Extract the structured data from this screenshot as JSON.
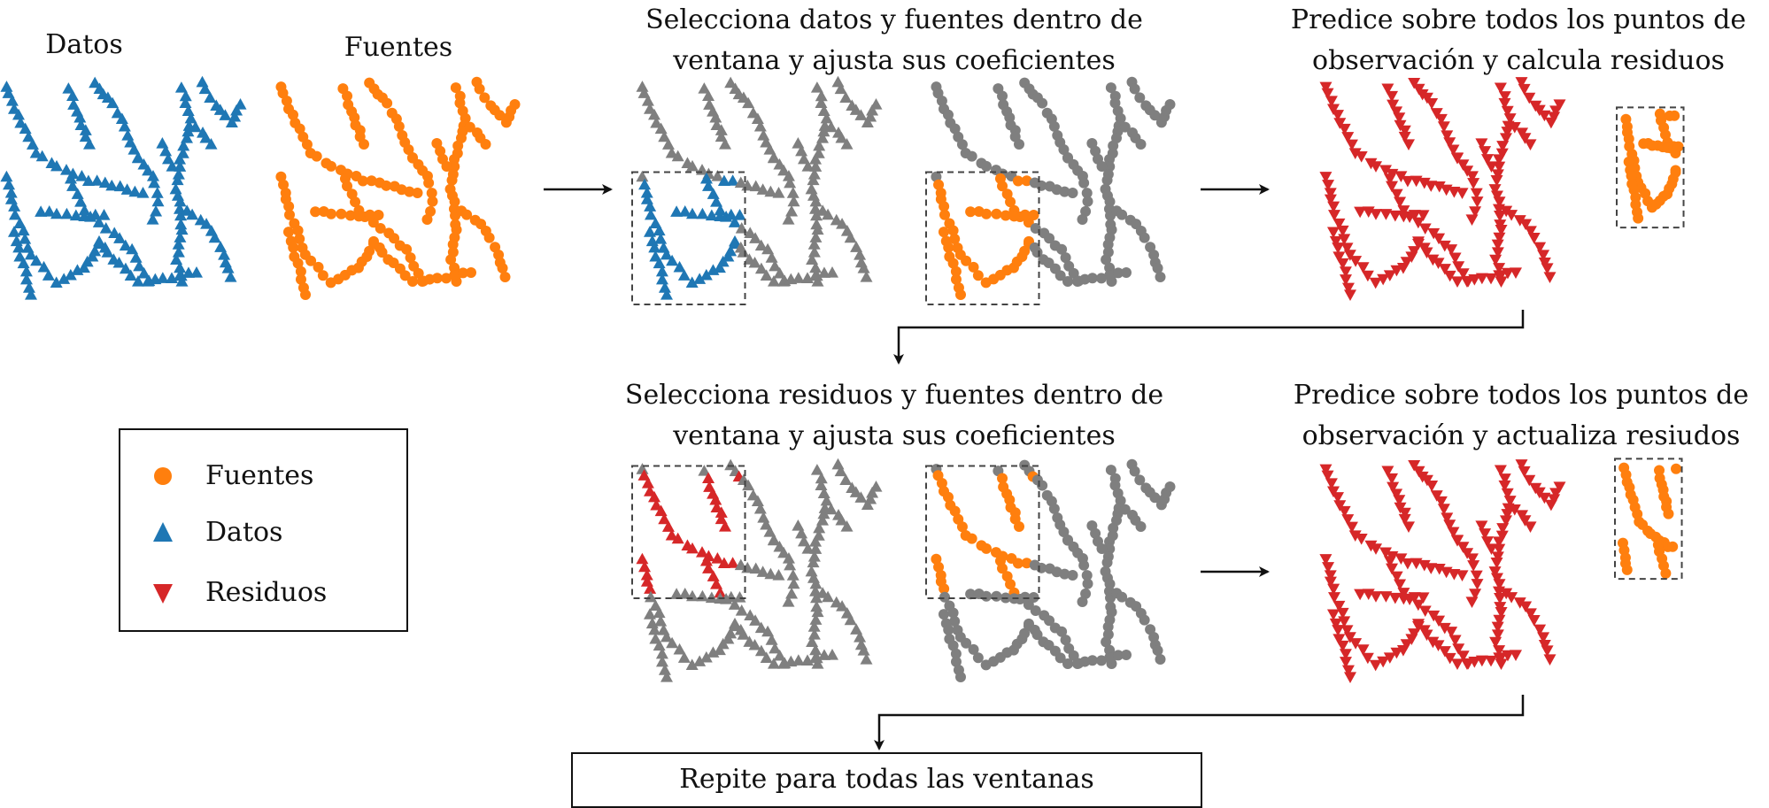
{
  "labels": {
    "datos": "Datos",
    "fuentes": "Fuentes",
    "step1_line1": "Selecciona datos y fuentes dentro de",
    "step1_line2": "ventana y ajusta sus coeficientes",
    "step2_line1": "Predice sobre todos los puntos de",
    "step2_line2": "observación y calcula residuos",
    "step3_line1": "Selecciona residuos y fuentes dentro de",
    "step3_line2": "ventana y ajusta sus coeficientes",
    "step4_line1": "Predice sobre todos los puntos de",
    "step4_line2": "observación y actualiza resiudos",
    "repeat": "Repite para todas las ventanas"
  },
  "legend": {
    "items": [
      {
        "label": "Fuentes",
        "symbol": "circle",
        "color": "#ff7f0e"
      },
      {
        "label": "Datos",
        "symbol": "triangle-up",
        "color": "#1f77b4"
      },
      {
        "label": "Residuos",
        "symbol": "triangle-down",
        "color": "#d62728"
      }
    ]
  },
  "colors": {
    "datos": "#1f77b4",
    "fuentes": "#ff7f0e",
    "residuos": "#d62728",
    "inactive": "#7f7f7f",
    "window_border": "#444444",
    "arrow": "#111111"
  }
}
